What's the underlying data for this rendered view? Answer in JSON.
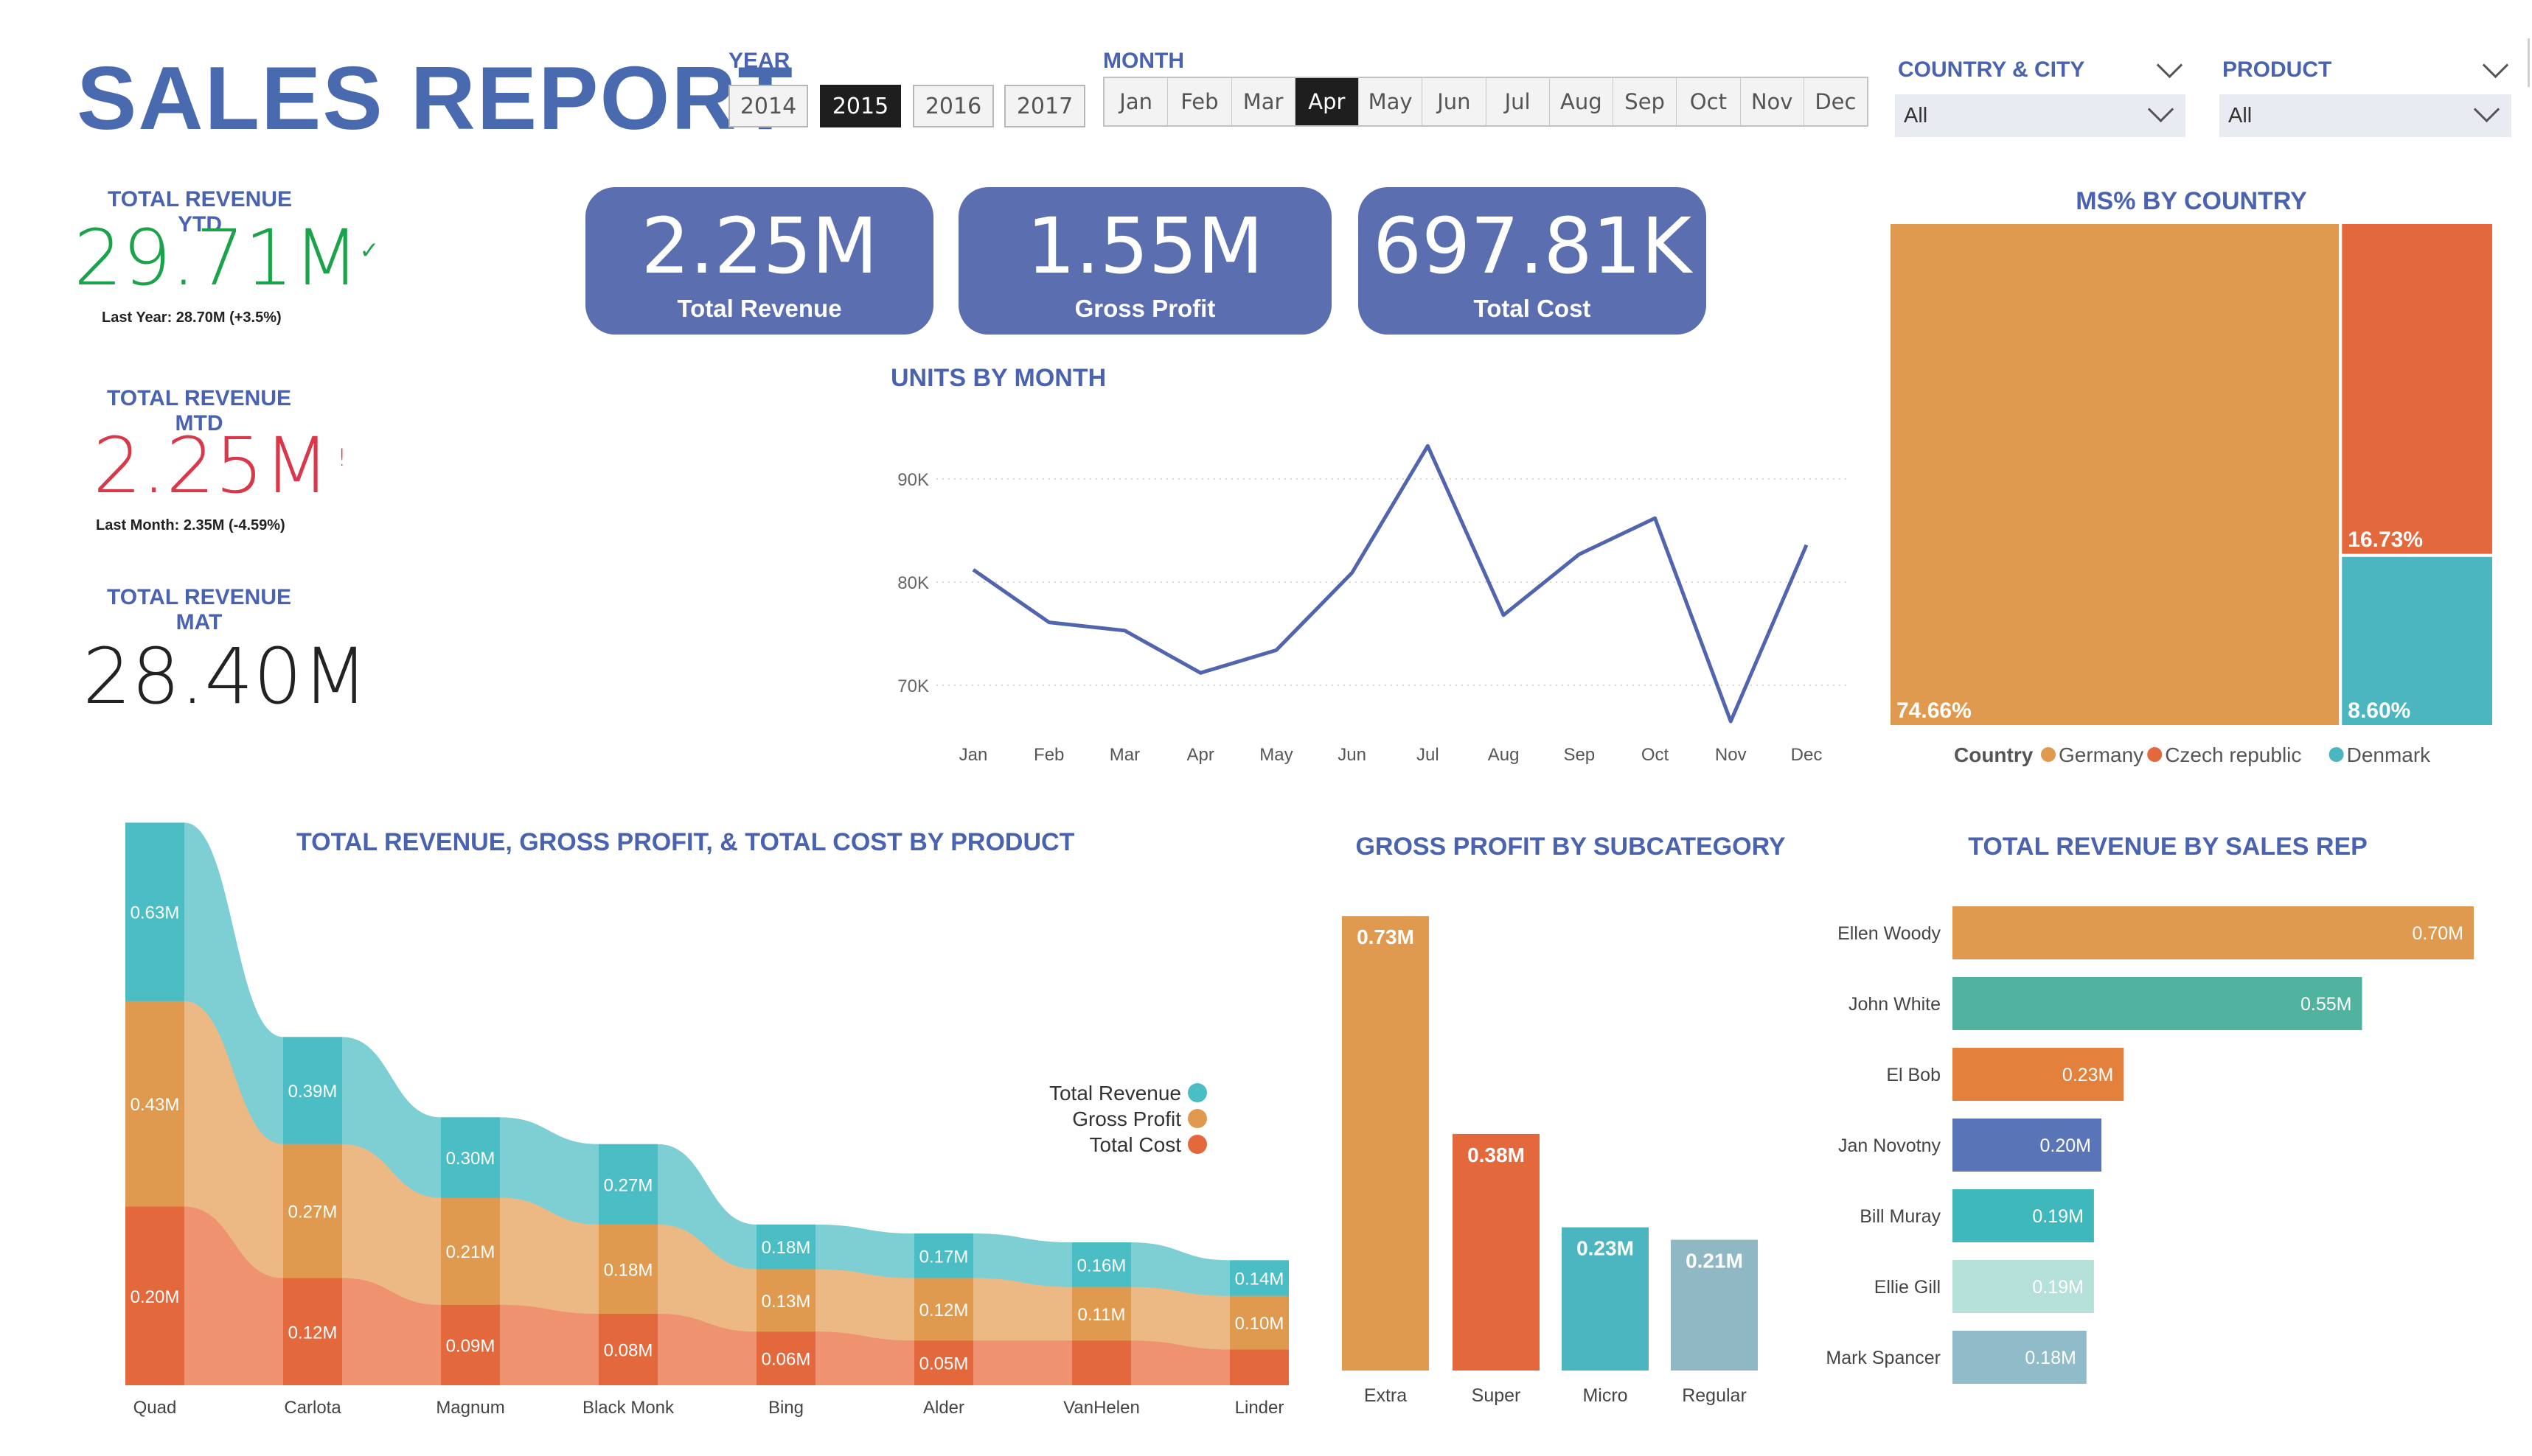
{
  "header": {
    "title": "SALES REPORT"
  },
  "year_slicer": {
    "label": "YEAR",
    "options": [
      "2014",
      "2015",
      "2016",
      "2017"
    ],
    "selected": "2015"
  },
  "month_slicer": {
    "label": "MONTH",
    "options": [
      "Jan",
      "Feb",
      "Mar",
      "Apr",
      "May",
      "Jun",
      "Jul",
      "Aug",
      "Sep",
      "Oct",
      "Nov",
      "Dec"
    ],
    "selected": "Apr"
  },
  "country_filter": {
    "label": "COUNTRY & CITY",
    "value": "All"
  },
  "product_filter": {
    "label": "PRODUCT",
    "value": "All"
  },
  "kpis": {
    "ytd": {
      "label": "TOTAL REVENUE YTD",
      "value": "29.71M",
      "indicator": "✓",
      "sub": "Last Year: 28.70M (+3.5%)",
      "color": "#1aa34a"
    },
    "mtd": {
      "label": "TOTAL REVENUE MTD",
      "value": "2.25M",
      "indicator": "!",
      "sub": "Last Month: 2.35M (-4.59%)",
      "color": "#d9384a"
    },
    "mat": {
      "label": "TOTAL REVENUE MAT",
      "value": "28.40M"
    }
  },
  "cards": [
    {
      "value": "2.25M",
      "label": "Total Revenue"
    },
    {
      "value": "1.55M",
      "label": "Gross Profit"
    },
    {
      "value": "697.81K",
      "label": "Total Cost"
    }
  ],
  "colors": {
    "accent": "#4a63b0",
    "card": "#5b6fb0",
    "revenue": "#4bbdc4",
    "profit": "#e09a4f",
    "cost": "#e3683c",
    "line": "#5065ae"
  },
  "chart_data": [
    {
      "id": "units_by_month",
      "type": "line",
      "title": "UNITS BY MONTH",
      "categories": [
        "Jan",
        "Feb",
        "Mar",
        "Apr",
        "May",
        "Jun",
        "Jul",
        "Aug",
        "Sep",
        "Oct",
        "Nov",
        "Dec"
      ],
      "values": [
        81200,
        76100,
        75300,
        71200,
        73400,
        80900,
        93200,
        76800,
        82700,
        86200,
        66500,
        83600
      ],
      "ylim": [
        65000,
        95000
      ],
      "yticks": [
        70000,
        80000,
        90000
      ],
      "ytick_labels": [
        "70K",
        "80K",
        "90K"
      ],
      "grid": true
    },
    {
      "id": "ms_by_country",
      "type": "treemap",
      "title": "MS% BY COUNTRY",
      "legend_title": "Country",
      "items": [
        {
          "name": "Germany",
          "value": 74.66,
          "label": "74.66%",
          "color": "#e09a4f"
        },
        {
          "name": "Czech republic",
          "value": 16.73,
          "label": "16.73%",
          "color": "#e3683c"
        },
        {
          "name": "Denmark",
          "value": 8.6,
          "label": "8.60%",
          "color": "#4bb5c0"
        }
      ],
      "legend": "bottom"
    },
    {
      "id": "revenue_profit_cost_by_product",
      "type": "area",
      "title": "TOTAL REVENUE, GROSS PROFIT, & TOTAL COST  BY PRODUCT",
      "categories": [
        "Quad",
        "Carlota",
        "Magnum",
        "Black Monk",
        "Bing",
        "Alder",
        "VanHelen",
        "Linder"
      ],
      "series": [
        {
          "name": "Total Revenue",
          "values": [
            0.63,
            0.39,
            0.3,
            0.27,
            0.18,
            0.17,
            0.16,
            0.14
          ],
          "labels": [
            "0.63M",
            "0.39M",
            "0.30M",
            "0.27M",
            "0.18M",
            "0.17M",
            "0.16M",
            "0.14M"
          ]
        },
        {
          "name": "Gross Profit",
          "values": [
            0.43,
            0.27,
            0.21,
            0.18,
            0.13,
            0.12,
            0.11,
            0.1
          ],
          "labels": [
            "0.43M",
            "0.27M",
            "0.21M",
            "0.18M",
            "0.13M",
            "0.12M",
            "0.11M",
            "0.10M"
          ]
        },
        {
          "name": "Total Cost",
          "values": [
            0.2,
            0.12,
            0.09,
            0.08,
            0.06,
            0.05,
            0.05,
            0.04
          ],
          "labels": [
            "0.20M",
            "0.12M",
            "0.09M",
            "0.08M",
            "0.06M",
            "0.05M",
            "",
            ""
          ]
        }
      ],
      "stacked": true,
      "legend": "right"
    },
    {
      "id": "gross_profit_by_subcategory",
      "type": "bar",
      "title": "GROSS PROFIT BY SUBCATEGORY",
      "categories": [
        "Extra",
        "Super",
        "Micro",
        "Regular"
      ],
      "values": [
        0.73,
        0.38,
        0.23,
        0.21
      ],
      "labels": [
        "0.73M",
        "0.38M",
        "0.23M",
        "0.21M"
      ],
      "colors": [
        "#e09a4f",
        "#e3683c",
        "#4bb5c0",
        "#8fb8c4"
      ]
    },
    {
      "id": "revenue_by_sales_rep",
      "type": "bar",
      "orientation": "horizontal",
      "title": "TOTAL REVENUE BY SALES REP",
      "categories": [
        "Ellen Woody",
        "John White",
        "El Bob",
        "Jan Novotny",
        "Bill Muray",
        "Ellie Gill",
        "Mark Spancer"
      ],
      "values": [
        0.7,
        0.55,
        0.23,
        0.2,
        0.19,
        0.19,
        0.18
      ],
      "labels": [
        "0.70M",
        "0.55M",
        "0.23M",
        "0.20M",
        "0.19M",
        "0.19M",
        "0.18M"
      ],
      "colors": [
        "#e09a4f",
        "#4fb3a0",
        "#e3803c",
        "#5a74b8",
        "#3fb8bd",
        "#b6e0da",
        "#8fbcc8"
      ]
    }
  ]
}
